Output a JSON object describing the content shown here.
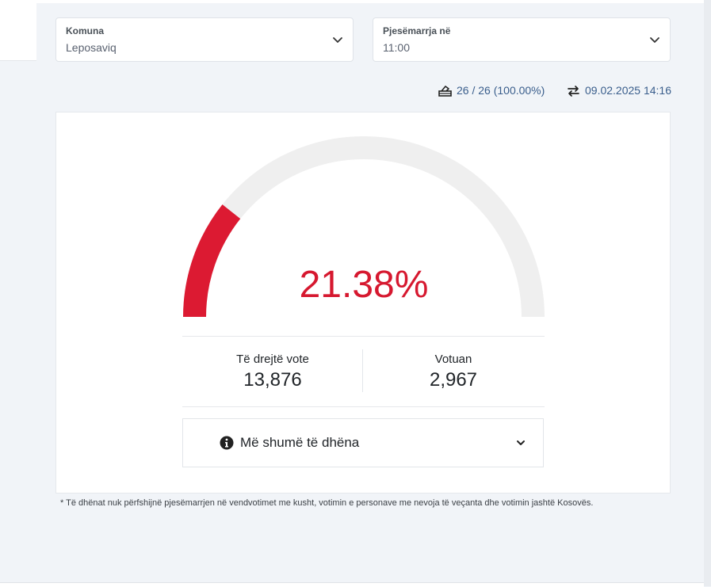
{
  "filters": {
    "municipality": {
      "label": "Komuna",
      "value": "Leposaviq"
    },
    "turnout_time": {
      "label": "Pjesëmarrja në",
      "value": "11:00"
    }
  },
  "meta": {
    "stations": "26 / 26 (100.00%)",
    "updated": "09.02.2025 14:16",
    "stations_icon": "ballot-box-icon",
    "updated_icon": "exchange-arrows-icon"
  },
  "gauge": {
    "percent_text": "21.38%",
    "percent_value": 21.38,
    "fill_color": "#dc1a32",
    "track_color": "#efefef"
  },
  "stats": {
    "eligible": {
      "label": "Të drejtë vote",
      "value": "13,876"
    },
    "voted": {
      "label": "Votuan",
      "value": "2,967"
    }
  },
  "more": {
    "label": "Më shumë të dhëna",
    "icon": "info-circle-icon"
  },
  "footnote": "* Të dhënat nuk përfshijnë pjesëmarrjen në vendvotimet me kusht, votimin e personave me nevoja të veçanta dhe votimin jashtë Kosovës."
}
